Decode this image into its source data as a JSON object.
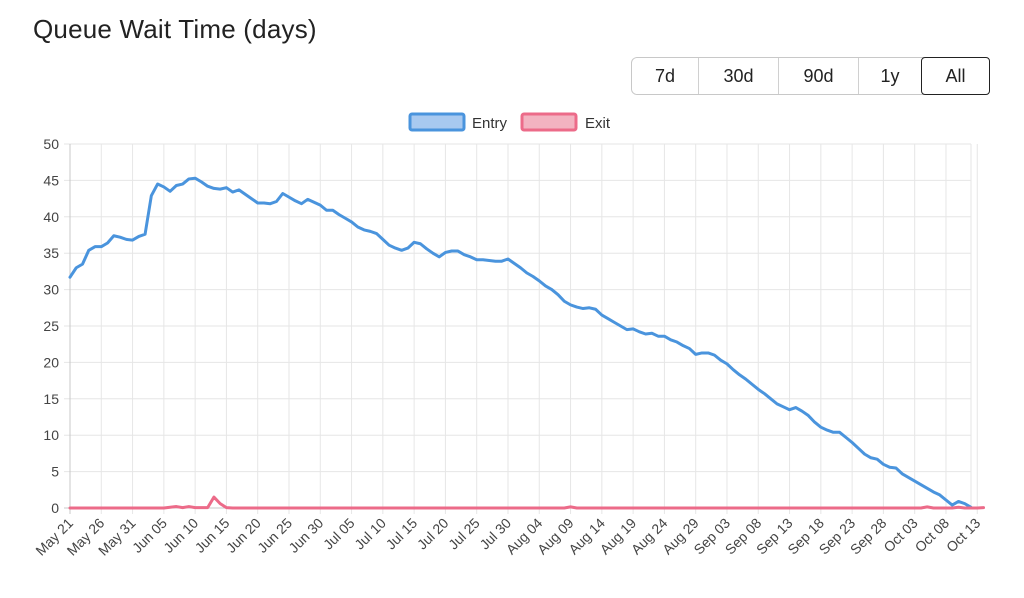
{
  "header": {
    "title": "Queue Wait Time (days)"
  },
  "range_buttons": [
    {
      "label": "7d",
      "active": false
    },
    {
      "label": "30d",
      "active": false
    },
    {
      "label": "90d",
      "active": false
    },
    {
      "label": "1y",
      "active": false
    },
    {
      "label": "All",
      "active": true
    }
  ],
  "chart_data": {
    "type": "line",
    "title": "",
    "xlabel": "",
    "ylabel": "",
    "ylim": [
      0,
      50
    ],
    "y_ticks": [
      "0",
      "5",
      "10",
      "15",
      "20",
      "25",
      "30",
      "35",
      "40",
      "45",
      "50"
    ],
    "x_ticks": [
      "May 21",
      "May 26",
      "May 31",
      "Jun 05",
      "Jun 10",
      "Jun 15",
      "Jun 20",
      "Jun 25",
      "Jun 30",
      "Jul 05",
      "Jul 10",
      "Jul 15",
      "Jul 20",
      "Jul 25",
      "Jul 30",
      "Aug 04",
      "Aug 09",
      "Aug 14",
      "Aug 19",
      "Aug 24",
      "Aug 29",
      "Sep 03",
      "Sep 08",
      "Sep 13",
      "Sep 18",
      "Sep 23",
      "Sep 28",
      "Oct 03",
      "Oct 08",
      "Oct 13"
    ],
    "x_start": "May 21",
    "grid": true,
    "legend_position": "top-center",
    "series": [
      {
        "name": "Entry",
        "color": "#4a94dd",
        "fill": "#a8c9f0",
        "values": [
          31.7,
          33.0,
          33.5,
          35.4,
          35.9,
          35.9,
          36.4,
          37.4,
          37.2,
          36.9,
          36.8,
          37.3,
          37.6,
          42.9,
          44.5,
          44.1,
          43.5,
          44.3,
          44.5,
          45.2,
          45.3,
          44.8,
          44.2,
          43.9,
          43.8,
          44.0,
          43.4,
          43.7,
          43.1,
          42.5,
          41.9,
          41.9,
          41.8,
          42.1,
          43.2,
          42.7,
          42.2,
          41.8,
          42.4,
          42.0,
          41.6,
          40.9,
          40.9,
          40.3,
          39.8,
          39.3,
          38.6,
          38.2,
          38.0,
          37.7,
          36.9,
          36.1,
          35.7,
          35.4,
          35.7,
          36.5,
          36.3,
          35.6,
          35.0,
          34.5,
          35.1,
          35.3,
          35.3,
          34.8,
          34.5,
          34.1,
          34.1,
          34.0,
          33.9,
          33.9,
          34.2,
          33.6,
          33.0,
          32.3,
          31.8,
          31.2,
          30.5,
          30.0,
          29.3,
          28.4,
          27.9,
          27.6,
          27.4,
          27.5,
          27.3,
          26.5,
          26.0,
          25.5,
          25.0,
          24.5,
          24.6,
          24.2,
          23.9,
          24.0,
          23.6,
          23.6,
          23.1,
          22.8,
          22.3,
          21.9,
          21.1,
          21.3,
          21.3,
          21.0,
          20.3,
          19.8,
          19.0,
          18.3,
          17.7,
          17.0,
          16.3,
          15.7,
          15.0,
          14.3,
          13.9,
          13.5,
          13.8,
          13.3,
          12.7,
          11.8,
          11.1,
          10.7,
          10.4,
          10.4,
          9.7,
          9.0,
          8.2,
          7.4,
          6.9,
          6.7,
          6.0,
          5.6,
          5.5,
          4.7,
          4.2,
          3.7,
          3.2,
          2.7,
          2.2,
          1.8,
          1.1,
          0.4,
          0.9,
          0.6,
          0.1
        ]
      },
      {
        "name": "Exit",
        "color": "#ec6b89",
        "fill": "#f3b3c1",
        "values": [
          0,
          0,
          0,
          0,
          0,
          0,
          0,
          0,
          0,
          0,
          0,
          0,
          0,
          0,
          0,
          0,
          0.1,
          0.2,
          0.05,
          0.2,
          0.05,
          0.05,
          0.05,
          1.5,
          0.6,
          0.05,
          0,
          0,
          0,
          0,
          0,
          0,
          0,
          0,
          0,
          0,
          0,
          0,
          0,
          0,
          0,
          0,
          0,
          0,
          0,
          0,
          0,
          0,
          0,
          0,
          0,
          0,
          0,
          0,
          0,
          0,
          0,
          0,
          0,
          0,
          0,
          0,
          0,
          0,
          0,
          0,
          0,
          0,
          0,
          0,
          0,
          0,
          0,
          0,
          0,
          0,
          0,
          0,
          0,
          0,
          0.15,
          0,
          0,
          0,
          0,
          0,
          0,
          0,
          0,
          0,
          0,
          0,
          0,
          0,
          0,
          0,
          0,
          0,
          0,
          0,
          0,
          0,
          0,
          0,
          0,
          0,
          0,
          0,
          0,
          0,
          0,
          0,
          0,
          0,
          0,
          0,
          0,
          0,
          0,
          0,
          0,
          0,
          0,
          0,
          0,
          0,
          0,
          0,
          0,
          0,
          0,
          0,
          0,
          0,
          0,
          0,
          0,
          0.15,
          0,
          0,
          0,
          0,
          0.1,
          0,
          0,
          0,
          0.05
        ]
      }
    ]
  }
}
